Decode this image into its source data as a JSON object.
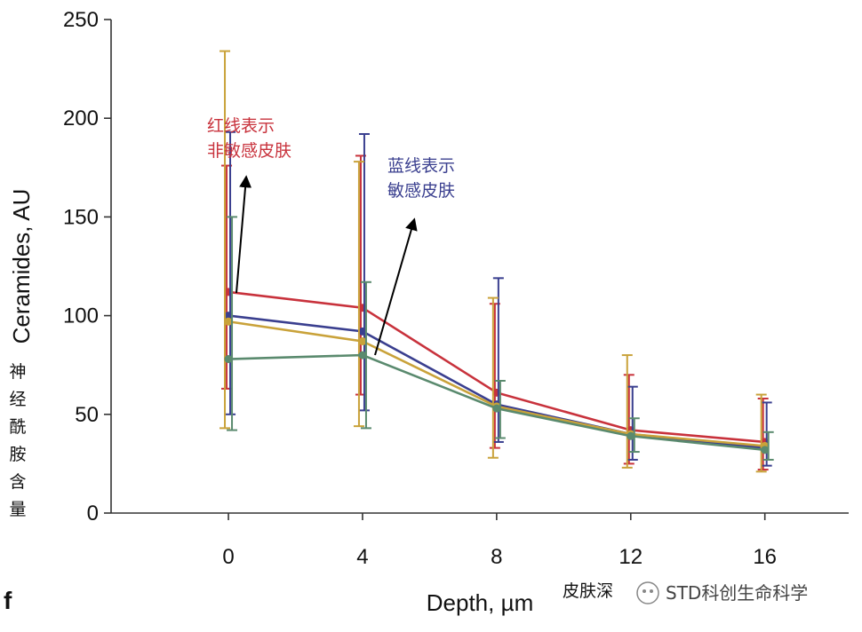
{
  "chart_data": {
    "type": "line",
    "panel_label": "f",
    "xlabel": "Depth, µm",
    "ylabel": "Ceramides, AU",
    "ylabel_zh": [
      "神",
      "经",
      "酰",
      "胺",
      "含",
      "量"
    ],
    "xlabel_zh": "皮肤深",
    "x": [
      0,
      4,
      8,
      12,
      16
    ],
    "x_ticks": [
      "0",
      "4",
      "8",
      "12",
      "16"
    ],
    "xlim": [
      -3.5,
      18.5
    ],
    "ylim": [
      0,
      250
    ],
    "y_ticks": [
      "0",
      "50",
      "100",
      "150",
      "200",
      "250"
    ],
    "series": [
      {
        "color": "#c8323c",
        "values": [
          112,
          104,
          61,
          42,
          36
        ],
        "err_low": [
          63,
          60,
          33,
          25,
          22
        ],
        "err_high": [
          176,
          181,
          106,
          70,
          58
        ]
      },
      {
        "color": "#3a3f8f",
        "values": [
          100,
          92,
          55,
          40,
          33
        ],
        "err_low": [
          50,
          52,
          36,
          27,
          24
        ],
        "err_high": [
          193,
          192,
          119,
          64,
          56
        ]
      },
      {
        "color": "#c9a23a",
        "values": [
          97,
          87,
          54,
          40,
          34
        ],
        "err_low": [
          43,
          44,
          28,
          23,
          21
        ],
        "err_high": [
          234,
          178,
          109,
          80,
          60
        ]
      },
      {
        "color": "#5a8a6e",
        "values": [
          78,
          80,
          53,
          39,
          32
        ],
        "err_low": [
          42,
          43,
          38,
          31,
          27
        ],
        "err_high": [
          150,
          117,
          67,
          48,
          41
        ]
      }
    ],
    "annotations": [
      {
        "lines": [
          "红线表示",
          "非敏感皮肤"
        ],
        "color": "#c8323c"
      },
      {
        "lines": [
          "蓝线表示",
          "敏感皮肤"
        ],
        "color": "#3a3f8f"
      }
    ]
  },
  "watermark": {
    "text": "STD科创生命科学"
  }
}
